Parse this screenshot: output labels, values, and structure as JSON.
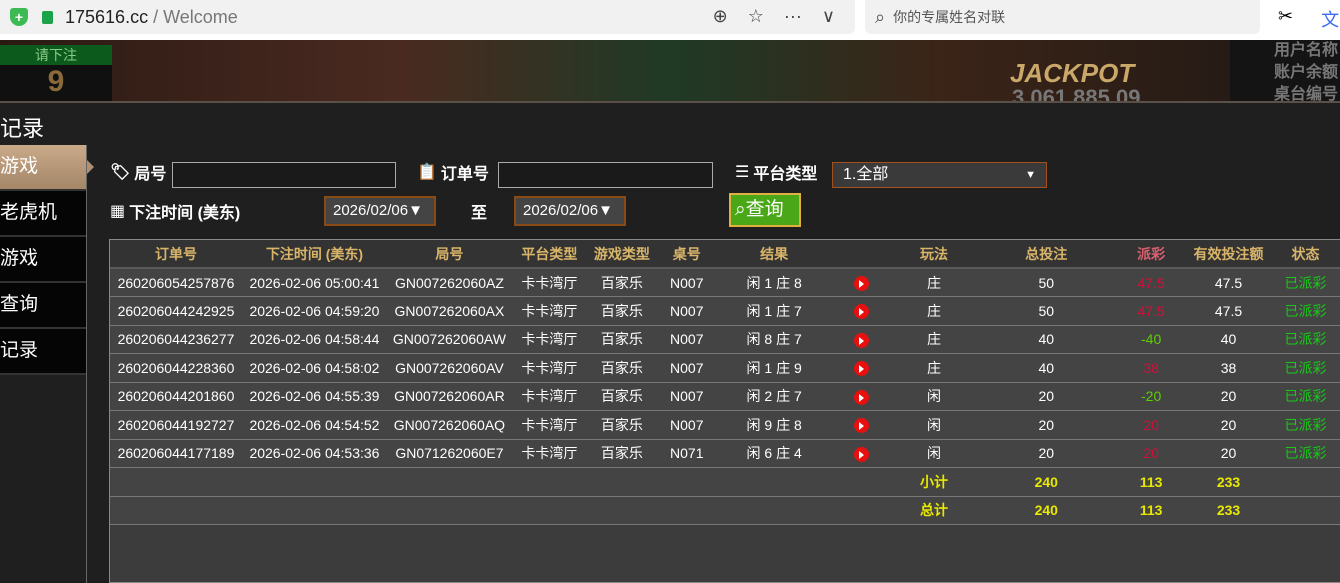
{
  "browser": {
    "domain": "175616.cc",
    "path": " / Welcome",
    "search_placeholder": "你的专属姓名对联"
  },
  "banner": {
    "bet_label": "请下注",
    "countdown": "9",
    "jackpot_label": "JACKPOT",
    "jackpot_value": "3,061,885.09",
    "info": [
      "用户名称",
      "账户余额",
      "桌台编号"
    ]
  },
  "page": {
    "title": "记录"
  },
  "nav": [
    "游戏",
    "老虎机",
    "游戏",
    "查询",
    "记录"
  ],
  "filters": {
    "round_label": "局号",
    "order_label": "订单号",
    "platform_label": "平台类型",
    "platform_value": "1.全部",
    "time_label": "下注时间 (美东)",
    "date_from": "2026/02/06▼",
    "to_label": "至",
    "date_to": "2026/02/06▼",
    "query_label": "查询"
  },
  "table": {
    "headers": [
      "订单号",
      "下注时间 (美东)",
      "局号",
      "平台类型",
      "游戏类型",
      "桌号",
      "结果",
      "",
      "玩法",
      "总投注",
      "派彩",
      "有效投注额",
      "状态"
    ],
    "rows": [
      [
        "260206054257876",
        "2026-02-06 05:00:41",
        "GN007262060AZ",
        "卡卡湾厅",
        "百家乐",
        "N007",
        "闲 1 庄 8",
        "庄",
        "50",
        "47.5",
        "47.5",
        "已派彩"
      ],
      [
        "260206044242925",
        "2026-02-06 04:59:20",
        "GN007262060AX",
        "卡卡湾厅",
        "百家乐",
        "N007",
        "闲 1 庄 7",
        "庄",
        "50",
        "47.5",
        "47.5",
        "已派彩"
      ],
      [
        "260206044236277",
        "2026-02-06 04:58:44",
        "GN007262060AW",
        "卡卡湾厅",
        "百家乐",
        "N007",
        "闲 8 庄 7",
        "庄",
        "40",
        "-40",
        "40",
        "已派彩"
      ],
      [
        "260206044228360",
        "2026-02-06 04:58:02",
        "GN007262060AV",
        "卡卡湾厅",
        "百家乐",
        "N007",
        "闲 1 庄 9",
        "庄",
        "40",
        "38",
        "38",
        "已派彩"
      ],
      [
        "260206044201860",
        "2026-02-06 04:55:39",
        "GN007262060AR",
        "卡卡湾厅",
        "百家乐",
        "N007",
        "闲 2 庄 7",
        "闲",
        "20",
        "-20",
        "20",
        "已派彩"
      ],
      [
        "260206044192727",
        "2026-02-06 04:54:52",
        "GN007262060AQ",
        "卡卡湾厅",
        "百家乐",
        "N007",
        "闲 9 庄 8",
        "闲",
        "20",
        "20",
        "20",
        "已派彩"
      ],
      [
        "260206044177189",
        "2026-02-06 04:53:36",
        "GN071262060E7",
        "卡卡湾厅",
        "百家乐",
        "N071",
        "闲 6 庄 4",
        "闲",
        "20",
        "20",
        "20",
        "已派彩"
      ]
    ],
    "subtotal": {
      "label": "小计",
      "bet": "240",
      "payout": "113",
      "valid": "233"
    },
    "total": {
      "label": "总计",
      "bet": "240",
      "payout": "113",
      "valid": "233"
    }
  }
}
